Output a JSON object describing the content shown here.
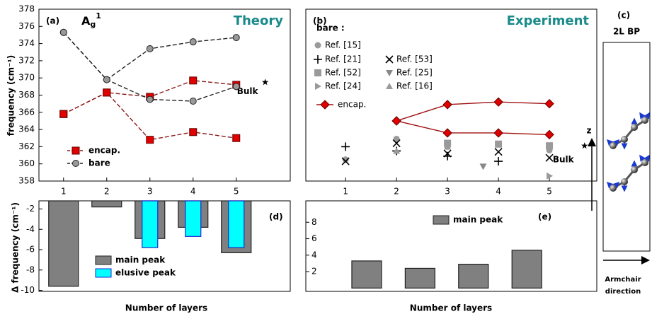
{
  "chart_data": [
    {
      "type": "line",
      "panel_label": "(a)",
      "title": "Theory",
      "mode": {
        "base": "A",
        "sub": "g",
        "sup": "1"
      },
      "y_label": "frequency (cm⁻¹)",
      "x": [
        1,
        2,
        3,
        4,
        5
      ],
      "xlim": [
        0.43,
        6.25
      ],
      "xticks": [
        1,
        2,
        3,
        4,
        5
      ],
      "ylim": [
        358,
        378
      ],
      "yticks": [
        358,
        360,
        362,
        364,
        366,
        368,
        370,
        372,
        374,
        376,
        378
      ],
      "series": [
        {
          "name": "encap.",
          "color": "#8b1a1a",
          "marker_color": "#e00000",
          "marker": "square",
          "lines": [
            [
              365.8,
              368.3,
              367.8,
              369.7,
              369.2
            ],
            [
              365.8,
              368.3,
              362.8,
              363.7,
              363.0
            ]
          ]
        },
        {
          "name": "bare",
          "color": "#222222",
          "marker_color": "#999999",
          "marker": "circle",
          "lines": [
            [
              375.3,
              369.8,
              373.4,
              374.2,
              374.7
            ],
            [
              375.3,
              369.8,
              367.5,
              367.3,
              369.0
            ]
          ]
        }
      ],
      "bulk": {
        "label": "Bulk",
        "x": 5.67,
        "value": 369.5
      }
    },
    {
      "type": "scatter",
      "panel_label": "(b)",
      "title": "Experiment",
      "legend_title": "bare :",
      "x": [
        2,
        3,
        4,
        5
      ],
      "xlim": [
        0.22,
        5.93
      ],
      "xticks": [
        1,
        2,
        3,
        4,
        5
      ],
      "ylim": [
        358,
        378
      ],
      "series": [
        {
          "name": "Ref. [15]",
          "marker": "circle",
          "marker_color": "#9a9a9a",
          "x": [
            1,
            2,
            3,
            5
          ],
          "values": [
            360.5,
            362.9,
            362.0,
            361.6
          ]
        },
        {
          "name": "Ref. [21]",
          "marker": "plus",
          "marker_color": "#000000",
          "x": [
            1,
            2,
            3,
            4
          ],
          "values": [
            362.0,
            361.5,
            360.9,
            360.3
          ]
        },
        {
          "name": "Ref. [53]",
          "marker": "cross",
          "marker_color": "#000000",
          "x": [
            1,
            2,
            3,
            4,
            5
          ],
          "values": [
            360.3,
            362.4,
            361.2,
            361.4,
            360.7
          ]
        },
        {
          "name": "Ref. [52]",
          "marker": "square",
          "marker_color": "#9a9a9a",
          "x": [
            3,
            4,
            5
          ],
          "values": [
            362.4,
            362.3,
            362.1
          ]
        },
        {
          "name": "Ref. [25]",
          "marker": "tri-down",
          "marker_color": "#888888",
          "x": [
            3.7
          ],
          "values": [
            359.7
          ]
        },
        {
          "name": "Ref. [24]",
          "marker": "tri-right",
          "marker_color": "#9a9a9a",
          "x": [
            5
          ],
          "values": [
            358.6
          ]
        },
        {
          "name": "Ref. [16]",
          "marker": "tri-up",
          "marker_color": "#9a9a9a",
          "x": [
            2,
            3
          ],
          "values": [
            361.5,
            362.0
          ]
        },
        {
          "name": "encap.",
          "color": "#a01010",
          "marker_color": "#e00000",
          "marker": "diamond",
          "lines": [
            [
              365.0,
              366.9,
              367.2,
              367.0
            ],
            [
              365.0,
              363.6,
              363.6,
              363.4
            ]
          ]
        }
      ],
      "bulk": {
        "label": "Bulk",
        "x": 5.69,
        "value": 362.1
      }
    },
    {
      "type": "bar",
      "panel_label": "(d)",
      "y_label": "Δ frequency (cm⁻¹)",
      "x_label": "Number of layers",
      "x": [
        1,
        2,
        3,
        4,
        5
      ],
      "xlim": [
        0.43,
        6.25
      ],
      "ylim": [
        -10.1,
        -1.2
      ],
      "yticks": [
        -10,
        -8,
        -6,
        -4,
        -2
      ],
      "series": [
        {
          "name": "main peak",
          "color": "#808080",
          "values": [
            -9.6,
            -1.8,
            -4.9,
            -3.8,
            -6.3
          ]
        },
        {
          "name": "elusive peak",
          "color": "#00ffff",
          "values": [
            null,
            null,
            -5.8,
            -4.7,
            -5.8
          ]
        }
      ]
    },
    {
      "type": "bar",
      "panel_label": "(e)",
      "x_label": "Number of layers",
      "x": [
        2,
        3,
        4,
        5
      ],
      "xlim": [
        0.86,
        6.31
      ],
      "ylim": [
        -0.4,
        10.6
      ],
      "yticks": [
        2,
        4,
        6,
        8
      ],
      "series": [
        {
          "name": "main peak",
          "color": "#808080",
          "values": [
            3.3,
            2.4,
            2.9,
            4.6
          ]
        }
      ]
    }
  ],
  "diagram": {
    "panel_label": "(c)",
    "title": "2L BP",
    "axis": "z",
    "direction": [
      "Armchair",
      "direction"
    ]
  }
}
